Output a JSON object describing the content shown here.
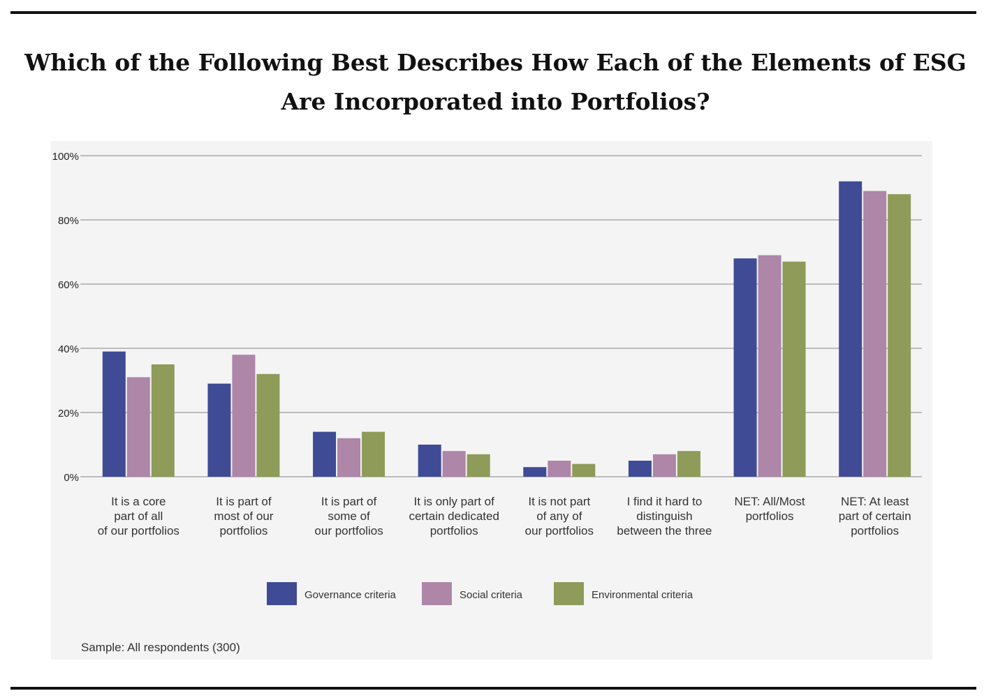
{
  "title_lines": [
    "Which of the Following Best Describes How Each of the Elements of ESG",
    "Are Incorporated into Portfolios?"
  ],
  "sample_note": "Sample: All respondents (300)",
  "colors": {
    "governance": "#3f4b94",
    "social": "#ad86a8",
    "environmental": "#8e9b59",
    "grid": "#a9a9a9"
  },
  "chart_data": {
    "type": "bar",
    "title": "Which of the Following Best Describes How Each of the Elements of ESG Are Incorporated into Portfolios?",
    "categories": [
      [
        "It is a core",
        "part of all",
        "of our portfolios"
      ],
      [
        "It is part of",
        "most of our",
        "portfolios"
      ],
      [
        "It is part of",
        "some of",
        "our portfolios"
      ],
      [
        "It is only part of",
        "certain dedicated",
        "portfolios"
      ],
      [
        "It is not part",
        "of any of",
        "our portfolios"
      ],
      [
        "I find it hard to",
        "distinguish",
        "between the three"
      ],
      [
        "NET: All/Most",
        "portfolios"
      ],
      [
        "NET: At least",
        "part of certain",
        "portfolios"
      ]
    ],
    "series": [
      {
        "name": "Governance criteria",
        "values": [
          39,
          29,
          14,
          10,
          3,
          5,
          68,
          92
        ]
      },
      {
        "name": "Social criteria",
        "values": [
          31,
          38,
          12,
          8,
          5,
          7,
          69,
          89
        ]
      },
      {
        "name": "Environmental criteria",
        "values": [
          35,
          32,
          14,
          7,
          4,
          8,
          67,
          88
        ]
      }
    ],
    "ylim": [
      0,
      100
    ],
    "yticks": [
      "0%",
      "20%",
      "40%",
      "60%",
      "80%",
      "100%"
    ],
    "ytick_values": [
      0,
      20,
      40,
      60,
      80,
      100
    ],
    "grid": true,
    "legend_position": "bottom"
  }
}
